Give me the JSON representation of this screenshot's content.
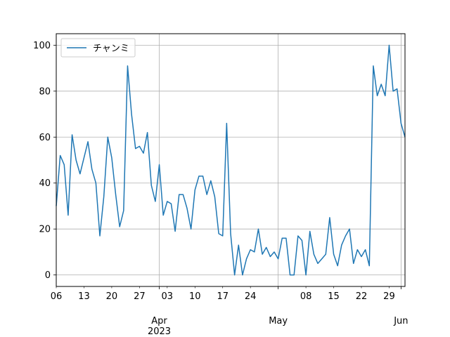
{
  "chart_data": {
    "type": "line",
    "title": "",
    "xlabel": "",
    "ylabel": "",
    "x_start": "2023-03-06",
    "x_end": "2023-06-02",
    "ylim": [
      -5,
      105
    ],
    "yticks": [
      0,
      20,
      40,
      60,
      80,
      100
    ],
    "grid": true,
    "legend": {
      "placement": "top-left"
    },
    "x_minor_ticks": [
      {
        "date": "2023-03-06",
        "label": "06"
      },
      {
        "date": "2023-03-13",
        "label": "13"
      },
      {
        "date": "2023-03-20",
        "label": "20"
      },
      {
        "date": "2023-03-27",
        "label": "27"
      },
      {
        "date": "2023-04-03",
        "label": "03"
      },
      {
        "date": "2023-04-10",
        "label": "10"
      },
      {
        "date": "2023-04-17",
        "label": "17"
      },
      {
        "date": "2023-04-24",
        "label": "24"
      },
      {
        "date": "2023-05-08",
        "label": "08"
      },
      {
        "date": "2023-05-15",
        "label": "15"
      },
      {
        "date": "2023-05-22",
        "label": "22"
      },
      {
        "date": "2023-05-29",
        "label": "29"
      }
    ],
    "x_major_ticks": [
      {
        "date": "2023-04-01",
        "label": "Apr",
        "sublabel": "2023"
      },
      {
        "date": "2023-05-01",
        "label": "May",
        "sublabel": ""
      },
      {
        "date": "2023-06-01",
        "label": "Jun",
        "sublabel": ""
      }
    ],
    "series": [
      {
        "name": "チャンミ",
        "color": "#1f77b4",
        "values": [
          30,
          52,
          48,
          26,
          61,
          50,
          44,
          51,
          58,
          46,
          40,
          17,
          34,
          60,
          51,
          35,
          21,
          28,
          91,
          70,
          55,
          56,
          53,
          62,
          39,
          32,
          48,
          26,
          32,
          31,
          19,
          35,
          35,
          29,
          20,
          37,
          43,
          43,
          35,
          41,
          34,
          18,
          17,
          66,
          18,
          0,
          13,
          0,
          7,
          11,
          10,
          20,
          9,
          12,
          8,
          10,
          7,
          16,
          16,
          0,
          0,
          17,
          15,
          0,
          19,
          9,
          5,
          7,
          9,
          25,
          9,
          4,
          13,
          17,
          20,
          5,
          11,
          8,
          11,
          4,
          91,
          78,
          83,
          78,
          100,
          80,
          81,
          66,
          60
        ]
      }
    ]
  }
}
